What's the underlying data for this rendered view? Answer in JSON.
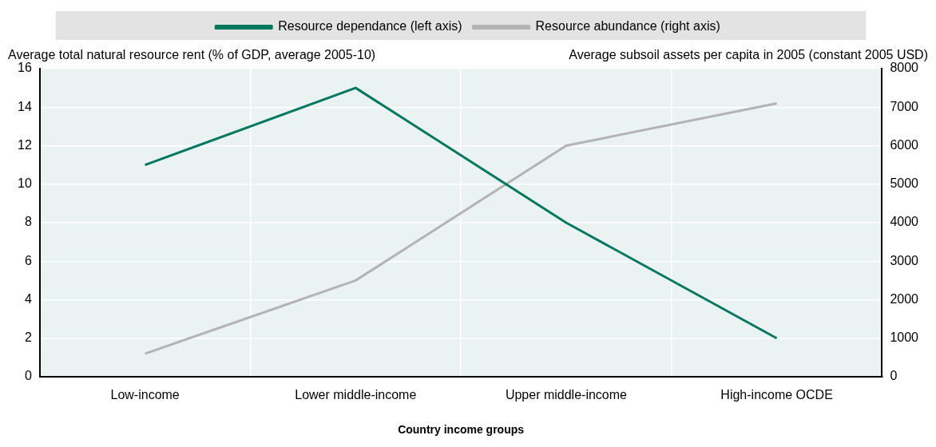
{
  "chart_data": {
    "type": "line",
    "categories": [
      "Low-income",
      "Lower middle-income",
      "Upper middle-income",
      "High-income OCDE"
    ],
    "series": [
      {
        "name": "Resource dependance (left axis)",
        "color": "#00775f",
        "values": [
          11,
          15,
          8,
          2
        ]
      },
      {
        "name": "Resource abundance (right axis)",
        "color": "#b3b3b3",
        "values": [
          600,
          2500,
          6000,
          7100
        ],
        "axis": "y2"
      }
    ],
    "xlabel": "Country income groups",
    "ylabel": "Average total natural resource rent (% of GDP, average 2005-10)",
    "y2label": "Average subsoil assets per capita in 2005 (constant 2005 USD)",
    "ylim": [
      0,
      16
    ],
    "yticks": [
      0,
      2,
      4,
      6,
      8,
      10,
      12,
      14,
      16
    ],
    "y2lim": [
      0,
      8000
    ],
    "y2ticks": [
      0,
      1000,
      2000,
      3000,
      4000,
      5000,
      6000,
      7000,
      8000
    ],
    "grid": true,
    "legend": "top",
    "marker": "none",
    "line_style": "solid"
  }
}
